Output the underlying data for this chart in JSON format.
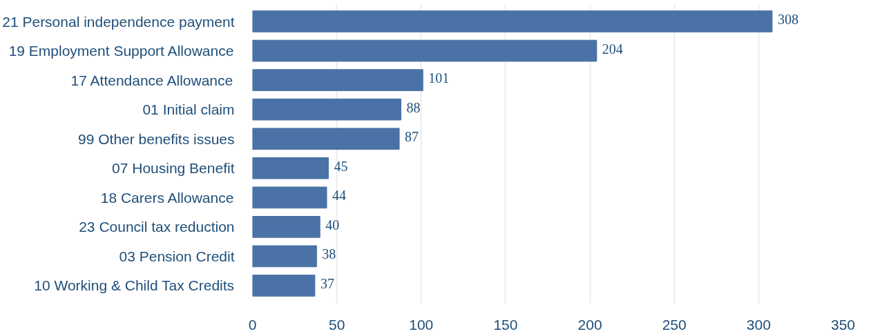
{
  "chart_data": {
    "type": "bar",
    "orientation": "horizontal",
    "categories": [
      "21 Personal independence payment",
      "19 Employment Support Allowance",
      "17 Attendance Allowance",
      "01 Initial claim",
      "99 Other benefits issues",
      "07 Housing Benefit",
      "18 Carers Allowance",
      "23 Council tax reduction",
      "03 Pension Credit",
      "10 Working & Child Tax Credits"
    ],
    "values": [
      308,
      204,
      101,
      88,
      87,
      45,
      44,
      40,
      38,
      37
    ],
    "color": "#4a72a6",
    "xlim": [
      0,
      350
    ],
    "xticks": [
      0,
      50,
      100,
      150,
      200,
      250,
      300,
      350
    ],
    "grid": "x",
    "data_labels": true
  }
}
